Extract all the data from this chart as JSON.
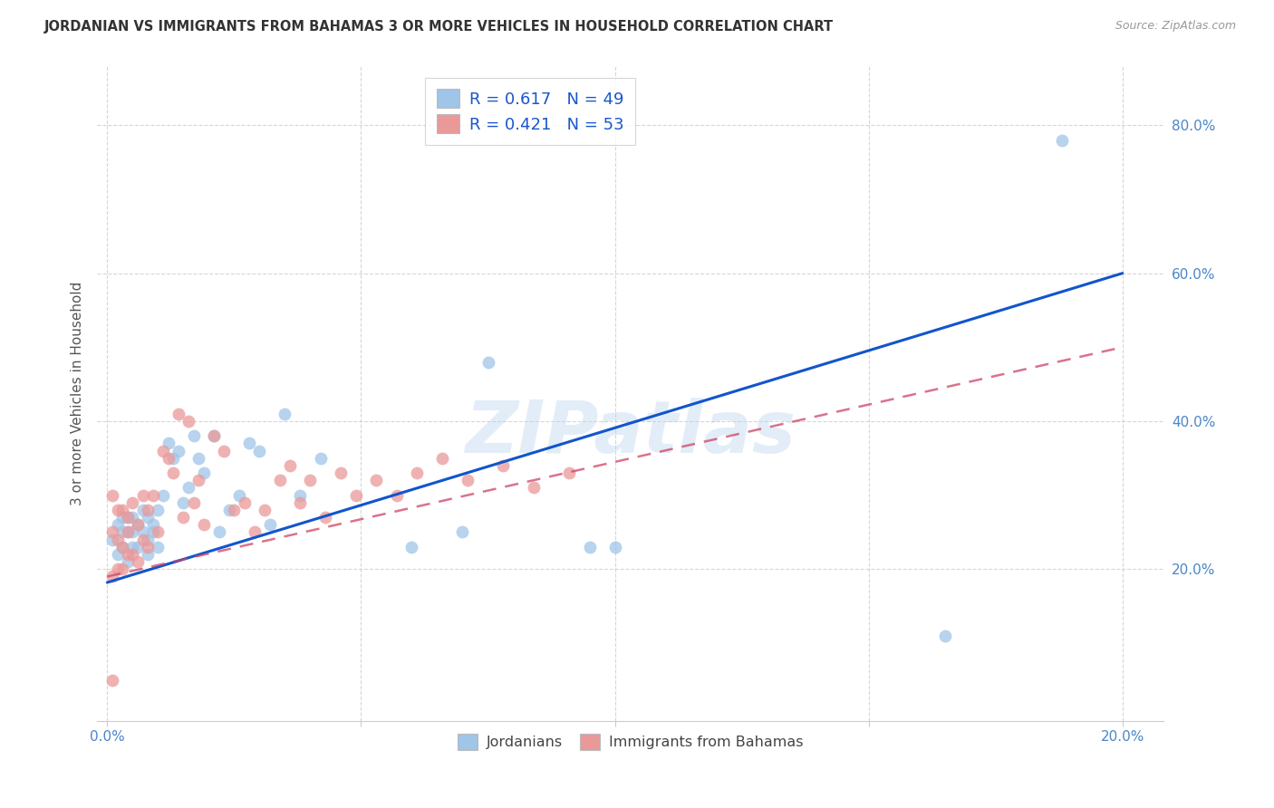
{
  "title": "JORDANIAN VS IMMIGRANTS FROM BAHAMAS 3 OR MORE VEHICLES IN HOUSEHOLD CORRELATION CHART",
  "source": "Source: ZipAtlas.com",
  "ylabel": "3 or more Vehicles in Household",
  "legend_label1": "Jordanians",
  "legend_label2": "Immigrants from Bahamas",
  "r1": 0.617,
  "n1": 49,
  "r2": 0.421,
  "n2": 53,
  "xlim": [
    -0.002,
    0.208
  ],
  "ylim": [
    -0.005,
    0.88
  ],
  "xticks": [
    0.0,
    0.05,
    0.1,
    0.15,
    0.2
  ],
  "xtick_labels": [
    "0.0%",
    "",
    "",
    "",
    "20.0%"
  ],
  "yticks": [
    0.2,
    0.4,
    0.6,
    0.8
  ],
  "ytick_labels": [
    "20.0%",
    "40.0%",
    "60.0%",
    "80.0%"
  ],
  "color_blue": "#9fc5e8",
  "color_pink": "#ea9999",
  "line_blue": "#1155cc",
  "line_pink": "#cc4466",
  "watermark": "ZIPatlas",
  "blue_x": [
    0.001,
    0.002,
    0.002,
    0.003,
    0.003,
    0.003,
    0.004,
    0.004,
    0.004,
    0.005,
    0.005,
    0.005,
    0.006,
    0.006,
    0.007,
    0.007,
    0.008,
    0.008,
    0.008,
    0.009,
    0.009,
    0.01,
    0.01,
    0.011,
    0.012,
    0.013,
    0.014,
    0.015,
    0.016,
    0.017,
    0.018,
    0.019,
    0.021,
    0.022,
    0.024,
    0.026,
    0.028,
    0.03,
    0.032,
    0.035,
    0.038,
    0.042,
    0.06,
    0.07,
    0.075,
    0.095,
    0.1,
    0.165,
    0.188
  ],
  "blue_y": [
    0.24,
    0.22,
    0.26,
    0.25,
    0.23,
    0.27,
    0.21,
    0.27,
    0.25,
    0.23,
    0.27,
    0.25,
    0.23,
    0.26,
    0.25,
    0.28,
    0.24,
    0.27,
    0.22,
    0.26,
    0.25,
    0.28,
    0.23,
    0.3,
    0.37,
    0.35,
    0.36,
    0.29,
    0.31,
    0.38,
    0.35,
    0.33,
    0.38,
    0.25,
    0.28,
    0.3,
    0.37,
    0.36,
    0.26,
    0.41,
    0.3,
    0.35,
    0.23,
    0.25,
    0.48,
    0.23,
    0.23,
    0.11,
    0.78
  ],
  "pink_x": [
    0.001,
    0.001,
    0.001,
    0.002,
    0.002,
    0.002,
    0.003,
    0.003,
    0.003,
    0.004,
    0.004,
    0.004,
    0.005,
    0.005,
    0.006,
    0.006,
    0.007,
    0.007,
    0.008,
    0.008,
    0.009,
    0.01,
    0.011,
    0.012,
    0.013,
    0.014,
    0.015,
    0.016,
    0.017,
    0.018,
    0.019,
    0.021,
    0.023,
    0.025,
    0.027,
    0.029,
    0.031,
    0.034,
    0.036,
    0.038,
    0.04,
    0.043,
    0.046,
    0.049,
    0.053,
    0.057,
    0.061,
    0.066,
    0.071,
    0.078,
    0.084,
    0.091,
    0.001
  ],
  "pink_y": [
    0.3,
    0.25,
    0.19,
    0.28,
    0.24,
    0.2,
    0.28,
    0.23,
    0.2,
    0.27,
    0.25,
    0.22,
    0.29,
    0.22,
    0.26,
    0.21,
    0.3,
    0.24,
    0.28,
    0.23,
    0.3,
    0.25,
    0.36,
    0.35,
    0.33,
    0.41,
    0.27,
    0.4,
    0.29,
    0.32,
    0.26,
    0.38,
    0.36,
    0.28,
    0.29,
    0.25,
    0.28,
    0.32,
    0.34,
    0.29,
    0.32,
    0.27,
    0.33,
    0.3,
    0.32,
    0.3,
    0.33,
    0.35,
    0.32,
    0.34,
    0.31,
    0.33,
    0.05
  ],
  "blue_line_x": [
    0.0,
    0.2
  ],
  "blue_line_y": [
    0.182,
    0.6
  ],
  "pink_line_x": [
    0.0,
    0.2
  ],
  "pink_line_y": [
    0.19,
    0.5
  ]
}
